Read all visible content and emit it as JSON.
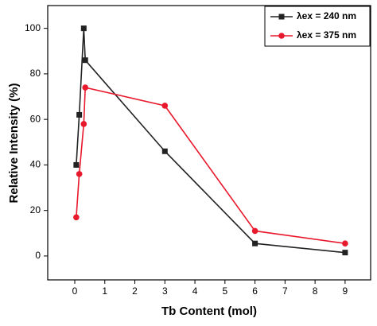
{
  "chart_data": {
    "type": "line",
    "xlabel": "Tb Content (mol)",
    "ylabel": "Relative Intensity (%)",
    "x": [
      0.05,
      0.15,
      0.3,
      0.35,
      3,
      6,
      9
    ],
    "series": [
      {
        "name": "λex = 240 nm",
        "color": "#222222",
        "marker": "square",
        "values": [
          40,
          62,
          100,
          86,
          46,
          5.5,
          1.5
        ]
      },
      {
        "name": "λex = 375 nm",
        "color": "#e8192c",
        "marker": "circle",
        "values": [
          17,
          36,
          58,
          74,
          66,
          11,
          5.5
        ]
      }
    ],
    "xlim": [
      -0.9,
      9.85
    ],
    "xticks": [
      0,
      1,
      2,
      3,
      4,
      5,
      6,
      7,
      8,
      9
    ],
    "ylim": [
      -10.5,
      110
    ],
    "yticks": [
      0,
      20,
      40,
      60,
      80,
      100
    ],
    "legend": "upper right"
  }
}
